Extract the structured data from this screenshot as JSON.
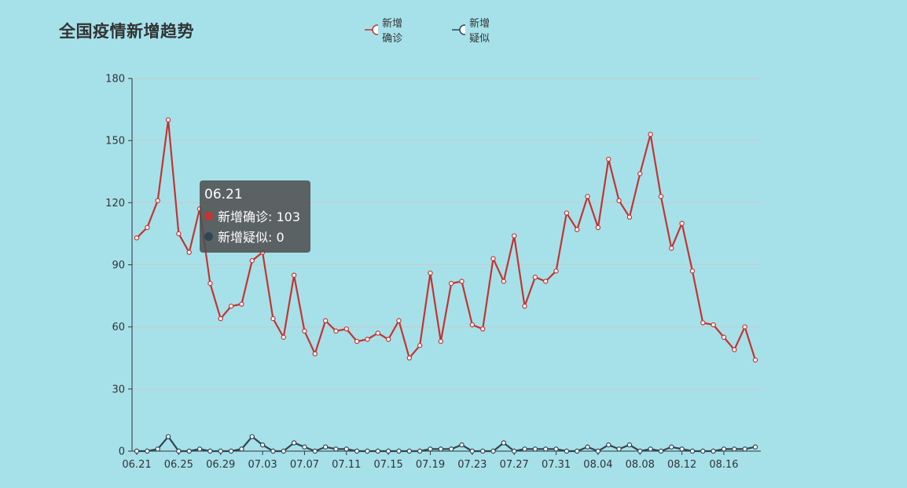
{
  "chart_data": {
    "type": "line",
    "title": "全国疫情新增趋势",
    "categories": [
      "06.21",
      "06.22",
      "06.23",
      "06.24",
      "06.25",
      "06.26",
      "06.27",
      "06.28",
      "06.29",
      "06.30",
      "07.01",
      "07.02",
      "07.03",
      "07.04",
      "07.05",
      "07.06",
      "07.07",
      "07.08",
      "07.09",
      "07.10",
      "07.11",
      "07.12",
      "07.13",
      "07.14",
      "07.15",
      "07.16",
      "07.17",
      "07.18",
      "07.19",
      "07.20",
      "07.21",
      "07.22",
      "07.23",
      "07.24",
      "07.25",
      "07.26",
      "07.27",
      "07.28",
      "07.29",
      "07.30",
      "07.31",
      "08.01",
      "08.02",
      "08.03",
      "08.04",
      "08.05",
      "08.06",
      "08.07",
      "08.08",
      "08.09",
      "08.10",
      "08.11",
      "08.12",
      "08.13",
      "08.14",
      "08.15",
      "08.16",
      "08.17",
      "08.18",
      "08.19"
    ],
    "tick_labels": [
      "06.21",
      "06.25",
      "06.29",
      "07.03",
      "07.07",
      "07.11",
      "07.15",
      "07.19",
      "07.23",
      "07.27",
      "07.31",
      "08.04",
      "08.08",
      "08.12",
      "08.16"
    ],
    "series": [
      {
        "name": "新增确诊",
        "color": "#c23531",
        "values": [
          103,
          108,
          121,
          160,
          105,
          96,
          117,
          81,
          64,
          70,
          71,
          92,
          96,
          64,
          55,
          85,
          58,
          47,
          63,
          58,
          59,
          53,
          54,
          57,
          54,
          63,
          45,
          51,
          86,
          53,
          81,
          82,
          61,
          59,
          93,
          82,
          104,
          70,
          84,
          82,
          87,
          115,
          107,
          123,
          108,
          141,
          121,
          113,
          134,
          153,
          123,
          98,
          110,
          87,
          62,
          61,
          55,
          49,
          60,
          44
        ]
      },
      {
        "name": "新增疑似",
        "color": "#2f4554",
        "values": [
          0,
          0,
          1,
          7,
          0,
          0,
          1,
          0,
          0,
          0,
          1,
          7,
          3,
          0,
          0,
          4,
          2,
          0,
          2,
          1,
          1,
          0,
          0,
          0,
          0,
          0,
          0,
          0,
          1,
          1,
          1,
          3,
          0,
          0,
          0,
          4,
          0,
          1,
          1,
          1,
          1,
          0,
          0,
          2,
          0,
          3,
          1,
          3,
          0,
          1,
          0,
          2,
          1,
          0,
          0,
          0,
          1,
          1,
          1,
          2
        ]
      }
    ],
    "ylim": [
      0,
      180
    ],
    "yticks": [
      0,
      30,
      60,
      90,
      120,
      150,
      180
    ],
    "grid": true,
    "legend_position": "top-center",
    "tooltip": {
      "title": "06.21",
      "rows": [
        {
          "label": "新增确诊: 103",
          "color": "#c23531"
        },
        {
          "label": "新增疑似: 0",
          "color": "#2f4554"
        }
      ]
    }
  }
}
